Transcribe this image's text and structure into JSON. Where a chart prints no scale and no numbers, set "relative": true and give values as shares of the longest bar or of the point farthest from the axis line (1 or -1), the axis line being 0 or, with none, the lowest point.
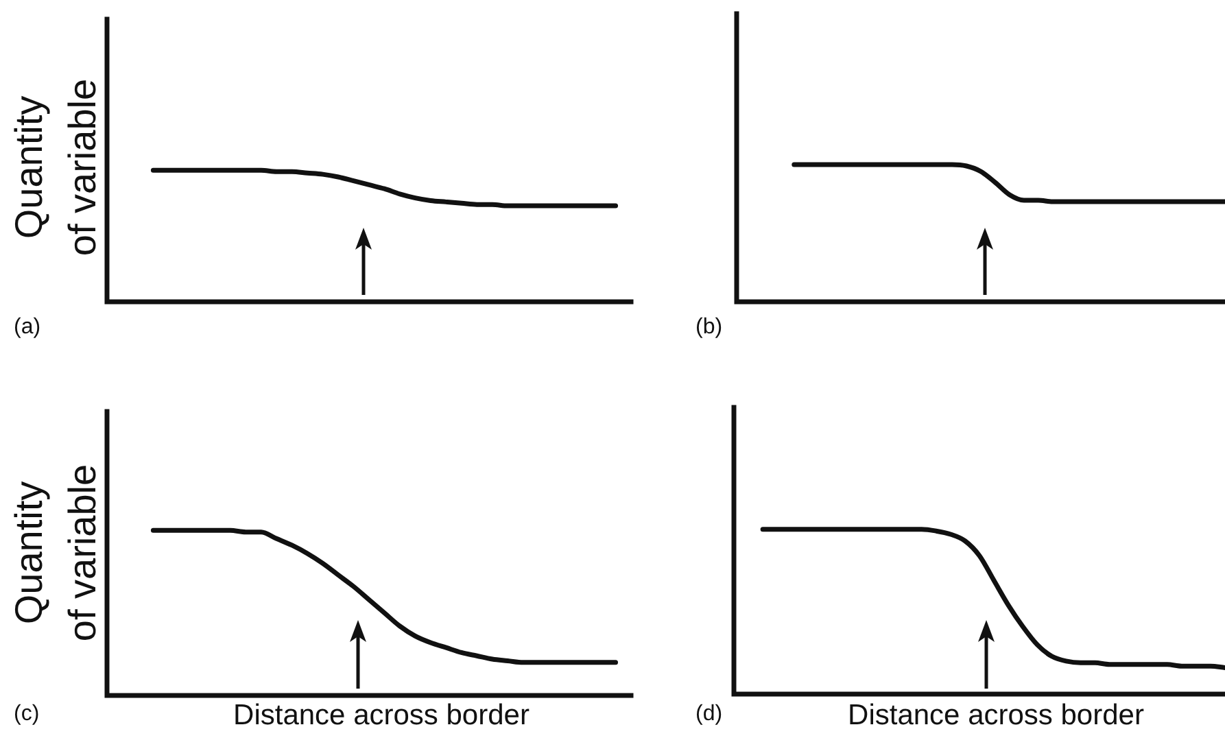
{
  "chart_data": [
    {
      "type": "line",
      "relative": true,
      "ylabel": "Quantity of variable",
      "annotations": [
        "(a)"
      ],
      "marker": "none",
      "line_style": "solid",
      "tick_labels": false,
      "categories": [
        null,
        null,
        null,
        null,
        null,
        null,
        null,
        null,
        null,
        null,
        null,
        null,
        null,
        null,
        null,
        null,
        null,
        null,
        null,
        null,
        null,
        null,
        null,
        null,
        null,
        null,
        null,
        null,
        null,
        null,
        null,
        null,
        null,
        null,
        null
      ],
      "series": [
        {
          "color": "#111111",
          "values": [
            null,
            null,
            null,
            1,
            1,
            1,
            1,
            1,
            1,
            1,
            1,
            0.99,
            0.99,
            0.98,
            0.97,
            0.95,
            0.92,
            0.89,
            0.86,
            0.82,
            0.79,
            0.77,
            0.76,
            0.75,
            0.74,
            0.74,
            0.73,
            0.73,
            0.73,
            0.73,
            0.73,
            0.73,
            0.73,
            0.73,
            null
          ]
        }
      ]
    },
    {
      "type": "line",
      "relative": true,
      "annotations": [
        "(b)"
      ],
      "marker": "none",
      "line_style": "solid",
      "tick_labels": false,
      "categories": [
        null,
        null,
        null,
        null,
        null,
        null,
        null,
        null,
        null,
        null,
        null,
        null,
        null,
        null,
        null,
        null,
        null,
        null,
        null,
        null,
        null,
        null,
        null,
        null,
        null,
        null,
        null,
        null,
        null,
        null,
        null,
        null,
        null,
        null,
        null
      ],
      "series": [
        {
          "color": "#111111",
          "values": [
            null,
            null,
            null,
            null,
            1,
            1,
            1,
            1,
            1,
            1,
            1,
            1,
            1,
            1,
            1,
            1,
            0.99,
            0.95,
            0.87,
            0.78,
            0.74,
            0.74,
            0.73,
            0.73,
            0.73,
            0.73,
            0.73,
            0.73,
            0.73,
            0.73,
            0.73,
            0.73,
            0.73,
            0.73,
            0.73
          ]
        }
      ]
    },
    {
      "type": "line",
      "relative": true,
      "ylabel": "Quantity of variable",
      "xlabel": "Distance across border",
      "annotations": [
        "(c)"
      ],
      "marker": "none",
      "line_style": "solid",
      "tick_labels": false,
      "categories": [
        null,
        null,
        null,
        null,
        null,
        null,
        null,
        null,
        null,
        null,
        null,
        null,
        null,
        null,
        null,
        null,
        null,
        null,
        null,
        null,
        null,
        null,
        null,
        null,
        null,
        null,
        null,
        null,
        null,
        null,
        null,
        null,
        null,
        null,
        null
      ],
      "series": [
        {
          "color": "#111111",
          "values": [
            null,
            null,
            null,
            1,
            1,
            1,
            1,
            1,
            1,
            0.99,
            0.99,
            0.95,
            0.91,
            0.86,
            0.8,
            0.73,
            0.66,
            0.58,
            0.5,
            0.42,
            0.36,
            0.32,
            0.29,
            0.26,
            0.24,
            0.22,
            0.21,
            0.2,
            0.2,
            0.2,
            0.2,
            0.2,
            0.2,
            0.2,
            null
          ]
        }
      ]
    },
    {
      "type": "line",
      "relative": true,
      "xlabel": "Distance across border",
      "annotations": [
        "(d)"
      ],
      "marker": "none",
      "line_style": "solid",
      "tick_labels": false,
      "categories": [
        null,
        null,
        null,
        null,
        null,
        null,
        null,
        null,
        null,
        null,
        null,
        null,
        null,
        null,
        null,
        null,
        null,
        null,
        null,
        null,
        null,
        null,
        null,
        null,
        null,
        null,
        null,
        null,
        null,
        null,
        null,
        null,
        null,
        null,
        null
      ],
      "series": [
        {
          "color": "#111111",
          "values": [
            null,
            null,
            1,
            1,
            1,
            1,
            1,
            1,
            1,
            1,
            1,
            1,
            1,
            1,
            0.99,
            0.97,
            0.93,
            0.84,
            0.69,
            0.54,
            0.41,
            0.3,
            0.23,
            0.2,
            0.19,
            0.19,
            0.18,
            0.18,
            0.18,
            0.18,
            0.18,
            0.17,
            0.17,
            0.17,
            0.16
          ]
        }
      ]
    }
  ]
}
